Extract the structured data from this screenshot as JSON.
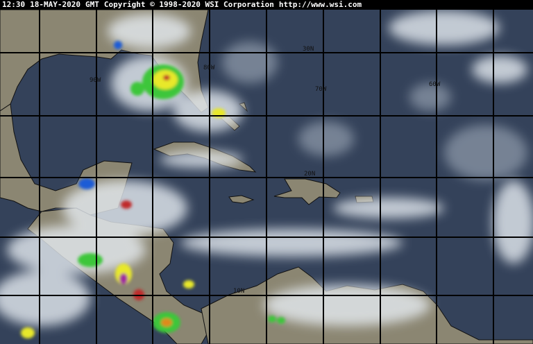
{
  "header": {
    "time": "12:30",
    "date": "18-MAY-2020",
    "zone": "GMT",
    "copyright": "Copyright © 1998-2020 WSI Corporation",
    "url": "http://www.wsi.com"
  },
  "grid_labels": {
    "lat_30": "30N",
    "lat_20": "20N",
    "lat_10": "10N",
    "lon_90": "90W",
    "lon_80": "80W",
    "lon_70": "70W",
    "lon_60": "60W"
  },
  "colors": {
    "ocean": "#34425a",
    "land": "#8b8672",
    "cloud": "#e6ecf2",
    "grid": "#000000",
    "storm_scale": [
      "#1e5bd6",
      "#22c0a0",
      "#3ec63a",
      "#e8e82a",
      "#e08a1a",
      "#c02a2a",
      "#a02aa0"
    ]
  }
}
